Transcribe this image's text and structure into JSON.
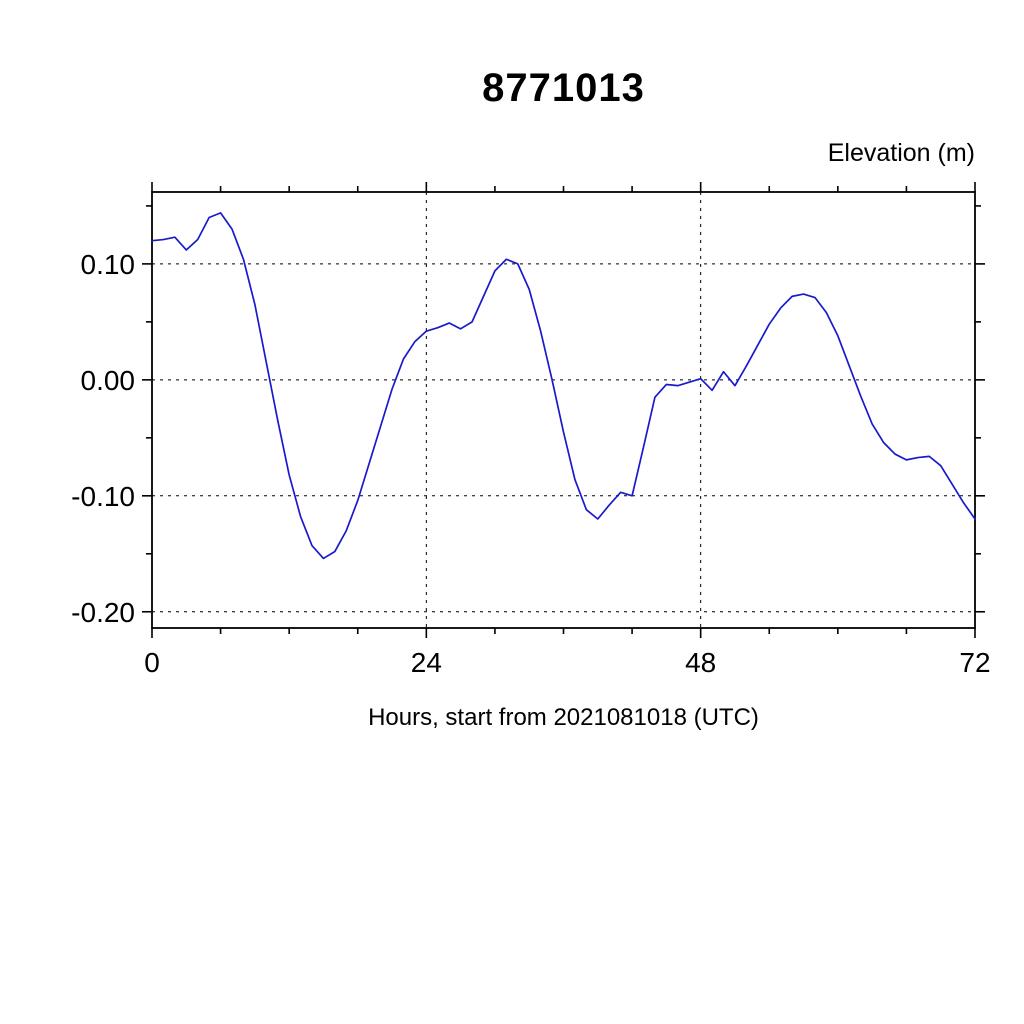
{
  "page": {
    "background": "#ffffff"
  },
  "chart_data": {
    "type": "line",
    "title": "8771013",
    "xlabel": "Hours, start from 2021081018 (UTC)",
    "ylabel": "Elevation (m)",
    "xlim": [
      0,
      72
    ],
    "ylim": [
      -0.214,
      0.162
    ],
    "x_major_ticks": [
      0,
      24,
      48,
      72
    ],
    "x_tick_labels": [
      "0",
      "24",
      "48",
      "72"
    ],
    "x_minor_step": 6,
    "y_major_ticks": [
      0.1,
      0.0,
      -0.1,
      -0.2
    ],
    "y_tick_labels": [
      "0.10",
      "0.00",
      "-0.10",
      "-0.20"
    ],
    "y_minor_ticks": [
      0.15,
      0.05,
      -0.05,
      -0.15
    ],
    "grid_x": [
      24,
      48
    ],
    "grid_y": [
      0.1,
      0.0,
      -0.1,
      -0.2
    ],
    "grid_style": "dashed",
    "legend": "none",
    "line_color": "#1a1acd",
    "axis_color": "#000000",
    "series": [
      {
        "name": "elevation",
        "x": [
          0,
          1,
          2,
          3,
          4,
          5,
          6,
          7,
          8,
          9,
          10,
          11,
          12,
          13,
          14,
          15,
          16,
          17,
          18,
          19,
          20,
          21,
          22,
          23,
          24,
          25,
          26,
          27,
          28,
          29,
          30,
          31,
          32,
          33,
          34,
          35,
          36,
          37,
          38,
          39,
          40,
          41,
          42,
          43,
          44,
          45,
          46,
          47,
          48,
          49,
          50,
          51,
          52,
          53,
          54,
          55,
          56,
          57,
          58,
          59,
          60,
          61,
          62,
          63,
          64,
          65,
          66,
          67,
          68,
          69,
          70,
          71,
          72
        ],
        "y": [
          0.12,
          0.121,
          0.123,
          0.112,
          0.121,
          0.14,
          0.144,
          0.13,
          0.104,
          0.065,
          0.015,
          -0.035,
          -0.082,
          -0.118,
          -0.143,
          -0.154,
          -0.148,
          -0.13,
          -0.104,
          -0.072,
          -0.04,
          -0.008,
          0.018,
          0.033,
          0.042,
          0.045,
          0.049,
          0.044,
          0.05,
          0.072,
          0.094,
          0.104,
          0.1,
          0.078,
          0.042,
          0.0,
          -0.045,
          -0.086,
          -0.112,
          -0.12,
          -0.108,
          -0.097,
          -0.1,
          -0.058,
          -0.015,
          -0.004,
          -0.005,
          -0.002,
          0.001,
          -0.009,
          0.007,
          -0.005,
          0.012,
          0.03,
          0.048,
          0.062,
          0.072,
          0.074,
          0.071,
          0.058,
          0.038,
          0.012,
          -0.014,
          -0.038,
          -0.054,
          -0.064,
          -0.069,
          -0.067,
          -0.066,
          -0.074,
          -0.09,
          -0.106,
          -0.12
        ]
      }
    ]
  }
}
